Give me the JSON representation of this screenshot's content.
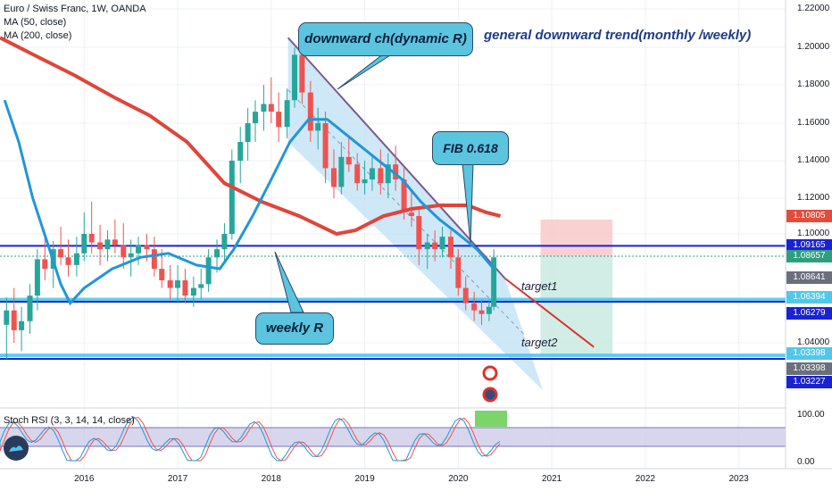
{
  "legend": {
    "symbol": "Euro / Swiss Franc, 1W, OANDA",
    "ma50": "MA (50, close)",
    "ma200": "MA (200, close)"
  },
  "rsi_legend": "Stoch RSI (3, 3, 14, 14, close)",
  "logo_icon": "tradingview-logo-icon",
  "annotations": {
    "channel_label": "downward ch(dynamic R)",
    "trend_note": "general downward trend(monthly /weekly)",
    "fib_label": "FIB 0.618",
    "weekly_label": "weekly R",
    "target1": "target1",
    "target2": "target2"
  },
  "price_axis": {
    "ticks": [
      "1.22000",
      "1.20000",
      "1.18000",
      "1.16000",
      "1.14000",
      "1.12000",
      "1.10000",
      "1.04000"
    ],
    "tags": [
      {
        "label": "1.10805",
        "color": "#e54b3b"
      },
      {
        "label": "1.09165",
        "color": "#1a22d6"
      },
      {
        "label": "1.08657",
        "color": "#2e9e7e"
      },
      {
        "label": "1.08641",
        "color": "#6b6f7c"
      },
      {
        "label": "1.06394",
        "color": "#50c8ea"
      },
      {
        "label": "1.06279",
        "color": "#1a22d6"
      },
      {
        "label": "1.03398",
        "color": "#50c8ea"
      },
      {
        "label": "1.03398",
        "color": "#6b6f7c"
      },
      {
        "label": "1.03227",
        "color": "#1a22d6"
      }
    ]
  },
  "rsi_axis": {
    "ticks": [
      "100.00",
      "0.00"
    ]
  },
  "time_axis": {
    "ticks": [
      "2016",
      "2017",
      "2018",
      "2019",
      "2020",
      "2021",
      "2022",
      "2023"
    ]
  },
  "colors": {
    "ma50": "#2196d9",
    "ma200": "#e0453a",
    "horizontal_lines": "#1a22d6",
    "cyan_zone": "#50c8ea",
    "channel_fill": "#bfe0f5",
    "channel_top": "#7a5a8a",
    "projection": "#d9342b",
    "candle_up": "#26a69a",
    "candle_down": "#ef5350",
    "stop_zone": "#f7c5c5",
    "target_zone": "#c5e9de",
    "rsi_band": "#c8c4e4",
    "rsi_k": "#2196d9",
    "rsi_d": "#ef5350"
  },
  "chart_data": {
    "type": "candlestick",
    "title": "Euro / Swiss Franc, 1W, OANDA",
    "x_range": [
      2015.1,
      2023.5
    ],
    "ylim": [
      1.0,
      1.225
    ],
    "grid": true,
    "ohlc": [
      {
        "t": 2015.17,
        "o": 1.05,
        "h": 1.065,
        "l": 1.032,
        "c": 1.058
      },
      {
        "t": 2015.25,
        "o": 1.058,
        "h": 1.07,
        "l": 1.04,
        "c": 1.047
      },
      {
        "t": 2015.33,
        "o": 1.047,
        "h": 1.06,
        "l": 1.036,
        "c": 1.052
      },
      {
        "t": 2015.42,
        "o": 1.052,
        "h": 1.072,
        "l": 1.045,
        "c": 1.066
      },
      {
        "t": 2015.5,
        "o": 1.066,
        "h": 1.09,
        "l": 1.058,
        "c": 1.085
      },
      {
        "t": 2015.58,
        "o": 1.085,
        "h": 1.098,
        "l": 1.074,
        "c": 1.08
      },
      {
        "t": 2015.67,
        "o": 1.08,
        "h": 1.095,
        "l": 1.07,
        "c": 1.09
      },
      {
        "t": 2015.75,
        "o": 1.09,
        "h": 1.104,
        "l": 1.082,
        "c": 1.086
      },
      {
        "t": 2015.83,
        "o": 1.086,
        "h": 1.096,
        "l": 1.076,
        "c": 1.082
      },
      {
        "t": 2015.92,
        "o": 1.082,
        "h": 1.098,
        "l": 1.076,
        "c": 1.088
      },
      {
        "t": 2016.0,
        "o": 1.088,
        "h": 1.112,
        "l": 1.084,
        "c": 1.1
      },
      {
        "t": 2016.08,
        "o": 1.1,
        "h": 1.118,
        "l": 1.088,
        "c": 1.094
      },
      {
        "t": 2016.17,
        "o": 1.094,
        "h": 1.105,
        "l": 1.082,
        "c": 1.09
      },
      {
        "t": 2016.25,
        "o": 1.09,
        "h": 1.102,
        "l": 1.084,
        "c": 1.096
      },
      {
        "t": 2016.33,
        "o": 1.096,
        "h": 1.108,
        "l": 1.088,
        "c": 1.092
      },
      {
        "t": 2016.42,
        "o": 1.092,
        "h": 1.106,
        "l": 1.08,
        "c": 1.086
      },
      {
        "t": 2016.5,
        "o": 1.086,
        "h": 1.096,
        "l": 1.076,
        "c": 1.088
      },
      {
        "t": 2016.58,
        "o": 1.088,
        "h": 1.098,
        "l": 1.082,
        "c": 1.092
      },
      {
        "t": 2016.67,
        "o": 1.092,
        "h": 1.1,
        "l": 1.084,
        "c": 1.09
      },
      {
        "t": 2016.75,
        "o": 1.09,
        "h": 1.098,
        "l": 1.076,
        "c": 1.08
      },
      {
        "t": 2016.83,
        "o": 1.08,
        "h": 1.09,
        "l": 1.07,
        "c": 1.074
      },
      {
        "t": 2016.92,
        "o": 1.074,
        "h": 1.082,
        "l": 1.064,
        "c": 1.07
      },
      {
        "t": 2017.0,
        "o": 1.07,
        "h": 1.082,
        "l": 1.062,
        "c": 1.074
      },
      {
        "t": 2017.08,
        "o": 1.074,
        "h": 1.08,
        "l": 1.062,
        "c": 1.066
      },
      {
        "t": 2017.17,
        "o": 1.066,
        "h": 1.076,
        "l": 1.06,
        "c": 1.07
      },
      {
        "t": 2017.25,
        "o": 1.07,
        "h": 1.08,
        "l": 1.064,
        "c": 1.072
      },
      {
        "t": 2017.33,
        "o": 1.072,
        "h": 1.09,
        "l": 1.068,
        "c": 1.086
      },
      {
        "t": 2017.42,
        "o": 1.086,
        "h": 1.096,
        "l": 1.078,
        "c": 1.09
      },
      {
        "t": 2017.5,
        "o": 1.09,
        "h": 1.106,
        "l": 1.084,
        "c": 1.1
      },
      {
        "t": 2017.58,
        "o": 1.1,
        "h": 1.146,
        "l": 1.096,
        "c": 1.14
      },
      {
        "t": 2017.67,
        "o": 1.14,
        "h": 1.158,
        "l": 1.128,
        "c": 1.15
      },
      {
        "t": 2017.75,
        "o": 1.15,
        "h": 1.168,
        "l": 1.14,
        "c": 1.16
      },
      {
        "t": 2017.83,
        "o": 1.16,
        "h": 1.172,
        "l": 1.15,
        "c": 1.166
      },
      {
        "t": 2017.92,
        "o": 1.166,
        "h": 1.18,
        "l": 1.156,
        "c": 1.17
      },
      {
        "t": 2018.0,
        "o": 1.17,
        "h": 1.184,
        "l": 1.16,
        "c": 1.166
      },
      {
        "t": 2018.08,
        "o": 1.166,
        "h": 1.176,
        "l": 1.15,
        "c": 1.158
      },
      {
        "t": 2018.17,
        "o": 1.158,
        "h": 1.178,
        "l": 1.152,
        "c": 1.172
      },
      {
        "t": 2018.25,
        "o": 1.172,
        "h": 1.2,
        "l": 1.168,
        "c": 1.196
      },
      {
        "t": 2018.33,
        "o": 1.196,
        "h": 1.202,
        "l": 1.17,
        "c": 1.176
      },
      {
        "t": 2018.42,
        "o": 1.176,
        "h": 1.182,
        "l": 1.15,
        "c": 1.156
      },
      {
        "t": 2018.5,
        "o": 1.156,
        "h": 1.168,
        "l": 1.146,
        "c": 1.16
      },
      {
        "t": 2018.58,
        "o": 1.16,
        "h": 1.166,
        "l": 1.128,
        "c": 1.136
      },
      {
        "t": 2018.67,
        "o": 1.136,
        "h": 1.146,
        "l": 1.12,
        "c": 1.126
      },
      {
        "t": 2018.75,
        "o": 1.126,
        "h": 1.15,
        "l": 1.122,
        "c": 1.142
      },
      {
        "t": 2018.83,
        "o": 1.142,
        "h": 1.152,
        "l": 1.134,
        "c": 1.138
      },
      {
        "t": 2018.92,
        "o": 1.138,
        "h": 1.144,
        "l": 1.124,
        "c": 1.128
      },
      {
        "t": 2019.0,
        "o": 1.128,
        "h": 1.14,
        "l": 1.122,
        "c": 1.13
      },
      {
        "t": 2019.08,
        "o": 1.13,
        "h": 1.142,
        "l": 1.124,
        "c": 1.136
      },
      {
        "t": 2019.17,
        "o": 1.136,
        "h": 1.146,
        "l": 1.122,
        "c": 1.128
      },
      {
        "t": 2019.25,
        "o": 1.128,
        "h": 1.144,
        "l": 1.12,
        "c": 1.138
      },
      {
        "t": 2019.33,
        "o": 1.138,
        "h": 1.148,
        "l": 1.124,
        "c": 1.13
      },
      {
        "t": 2019.42,
        "o": 1.13,
        "h": 1.136,
        "l": 1.108,
        "c": 1.112
      },
      {
        "t": 2019.5,
        "o": 1.112,
        "h": 1.124,
        "l": 1.104,
        "c": 1.11
      },
      {
        "t": 2019.58,
        "o": 1.11,
        "h": 1.114,
        "l": 1.082,
        "c": 1.09
      },
      {
        "t": 2019.67,
        "o": 1.09,
        "h": 1.1,
        "l": 1.08,
        "c": 1.094
      },
      {
        "t": 2019.75,
        "o": 1.094,
        "h": 1.102,
        "l": 1.084,
        "c": 1.09
      },
      {
        "t": 2019.83,
        "o": 1.09,
        "h": 1.104,
        "l": 1.086,
        "c": 1.098
      },
      {
        "t": 2019.92,
        "o": 1.098,
        "h": 1.102,
        "l": 1.08,
        "c": 1.086
      },
      {
        "t": 2020.0,
        "o": 1.086,
        "h": 1.09,
        "l": 1.066,
        "c": 1.07
      },
      {
        "t": 2020.08,
        "o": 1.07,
        "h": 1.076,
        "l": 1.058,
        "c": 1.062
      },
      {
        "t": 2020.17,
        "o": 1.062,
        "h": 1.068,
        "l": 1.052,
        "c": 1.058
      },
      {
        "t": 2020.25,
        "o": 1.058,
        "h": 1.064,
        "l": 1.05,
        "c": 1.056
      },
      {
        "t": 2020.33,
        "o": 1.056,
        "h": 1.064,
        "l": 1.052,
        "c": 1.06
      },
      {
        "t": 2020.38,
        "o": 1.06,
        "h": 1.09,
        "l": 1.058,
        "c": 1.086
      }
    ],
    "ma50": [
      [
        2015.15,
        1.172
      ],
      [
        2015.3,
        1.15
      ],
      [
        2015.45,
        1.12
      ],
      [
        2015.6,
        1.095
      ],
      [
        2015.75,
        1.072
      ],
      [
        2015.85,
        1.062
      ],
      [
        2016.0,
        1.07
      ],
      [
        2016.3,
        1.08
      ],
      [
        2016.6,
        1.086
      ],
      [
        2016.9,
        1.088
      ],
      [
        2017.2,
        1.082
      ],
      [
        2017.45,
        1.08
      ],
      [
        2017.6,
        1.09
      ],
      [
        2017.8,
        1.11
      ],
      [
        2018.0,
        1.13
      ],
      [
        2018.2,
        1.15
      ],
      [
        2018.4,
        1.162
      ],
      [
        2018.6,
        1.162
      ],
      [
        2018.8,
        1.154
      ],
      [
        2019.0,
        1.146
      ],
      [
        2019.2,
        1.138
      ],
      [
        2019.4,
        1.13
      ],
      [
        2019.6,
        1.118
      ],
      [
        2019.8,
        1.108
      ],
      [
        2020.0,
        1.1
      ],
      [
        2020.2,
        1.09
      ],
      [
        2020.38,
        1.08
      ]
    ],
    "ma200": [
      [
        2015.1,
        1.205
      ],
      [
        2015.5,
        1.195
      ],
      [
        2015.9,
        1.185
      ],
      [
        2016.3,
        1.174
      ],
      [
        2016.7,
        1.164
      ],
      [
        2017.1,
        1.15
      ],
      [
        2017.5,
        1.128
      ],
      [
        2017.9,
        1.118
      ],
      [
        2018.3,
        1.11
      ],
      [
        2018.7,
        1.1
      ],
      [
        2018.9,
        1.102
      ],
      [
        2019.2,
        1.11
      ],
      [
        2019.5,
        1.114
      ],
      [
        2019.8,
        1.116
      ],
      [
        2020.1,
        1.116
      ],
      [
        2020.3,
        1.112
      ],
      [
        2020.45,
        1.11
      ]
    ],
    "channel": {
      "upper": [
        [
          2018.18,
          1.205
        ],
        [
          2020.5,
          1.075
        ]
      ],
      "lower": [
        [
          2018.18,
          1.15
        ],
        [
          2021.0,
          1.002
        ]
      ]
    },
    "projection": [
      [
        2020.5,
        1.075
      ],
      [
        2021.45,
        1.038
      ]
    ],
    "horizontal_levels": [
      1.09165,
      1.06279,
      1.03227
    ],
    "cyan_levels": [
      1.06394,
      1.03398
    ],
    "zones": {
      "stop": [
        1.08657,
        1.10805
      ],
      "target": [
        1.03398,
        1.08657
      ],
      "x": [
        2020.88,
        2021.65
      ]
    },
    "stoch_rsi": {
      "ylim": [
        0,
        100
      ],
      "band": [
        20,
        80
      ]
    }
  }
}
